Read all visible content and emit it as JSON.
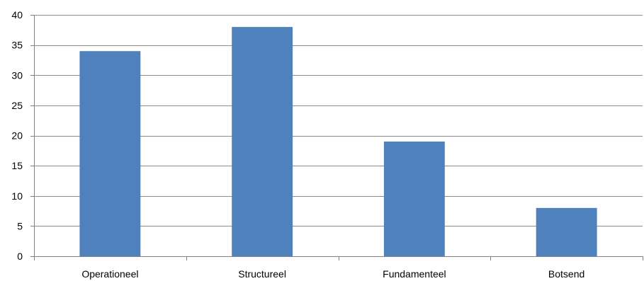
{
  "chart_data": {
    "type": "bar",
    "title": "",
    "xlabel": "",
    "ylabel": "",
    "categories": [
      "Operationeel",
      "Structureel",
      "Fundamenteel",
      "Botsend"
    ],
    "values": [
      34,
      38,
      19,
      8
    ],
    "ylim": [
      0,
      40
    ],
    "yticks": [
      0,
      5,
      10,
      15,
      20,
      25,
      30,
      35,
      40
    ],
    "grid": true,
    "legend": "none",
    "bar_color": "#4F81BD"
  }
}
